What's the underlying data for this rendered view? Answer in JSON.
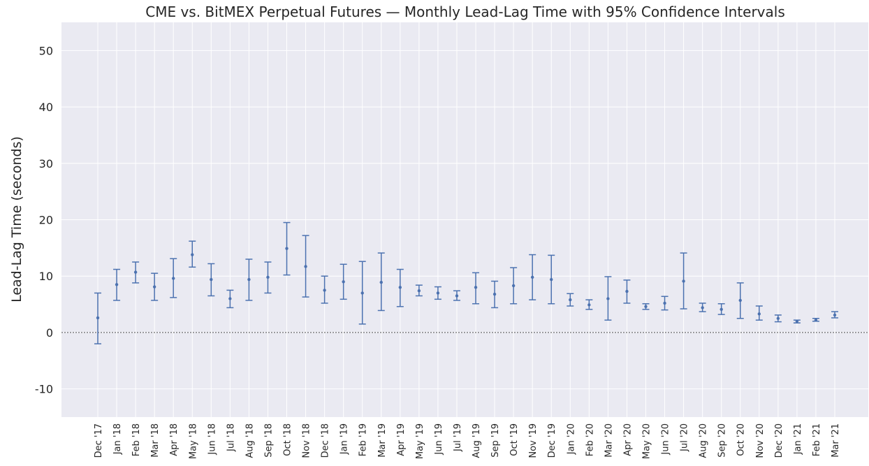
{
  "chart_data": {
    "type": "errorbar",
    "title": "CME vs. BitMEX Perpetual Futures — Monthly Lead-Lag Time with 95% Confidence Intervals",
    "y_label": "Lead-Lag Time (seconds)",
    "categories": [
      "Dec '17",
      "Jan '18",
      "Feb '18",
      "Mar '18",
      "Apr '18",
      "May '18",
      "Jun '18",
      "Jul '18",
      "Aug '18",
      "Sep '18",
      "Oct '18",
      "Nov '18",
      "Dec '18",
      "Jan '19",
      "Feb '19",
      "Mar '19",
      "Apr '19",
      "May '19",
      "Jun '19",
      "Jul '19",
      "Aug '19",
      "Sep '19",
      "Oct '19",
      "Nov '19",
      "Dec '19",
      "Jan '20",
      "Feb '20",
      "Mar '20",
      "Apr '20",
      "May '20",
      "Jun '20",
      "Jul '20",
      "Aug '20",
      "Sep '20",
      "Oct '20",
      "Nov '20",
      "Dec '20",
      "Jan '21",
      "Feb '21",
      "Mar '21"
    ],
    "color": "#4c72b0",
    "values": [
      2.6,
      8.5,
      10.7,
      8.1,
      9.6,
      13.8,
      9.4,
      6.0,
      9.4,
      9.8,
      14.9,
      11.7,
      7.5,
      9.0,
      7.0,
      8.9,
      8.0,
      7.4,
      7.0,
      6.5,
      8.0,
      6.8,
      8.3,
      9.8,
      9.4,
      5.8,
      4.9,
      6.0,
      7.3,
      4.6,
      5.2,
      9.1,
      4.4,
      4.1,
      5.7,
      3.3,
      2.5,
      2.0,
      2.2,
      3.1
    ],
    "ci_low": [
      -2.0,
      5.7,
      8.8,
      5.7,
      6.2,
      11.6,
      6.5,
      4.4,
      5.7,
      7.0,
      10.2,
      6.3,
      5.2,
      5.9,
      1.5,
      3.9,
      4.6,
      6.5,
      5.9,
      5.7,
      5.1,
      4.4,
      5.1,
      5.8,
      5.1,
      4.7,
      4.1,
      2.2,
      5.2,
      4.1,
      4.0,
      4.2,
      3.7,
      3.2,
      2.5,
      2.2,
      1.9,
      1.7,
      2.0,
      2.6
    ],
    "ci_high": [
      7.0,
      11.2,
      12.5,
      10.5,
      13.1,
      16.2,
      12.2,
      7.5,
      13.0,
      12.5,
      19.5,
      17.2,
      10.0,
      12.1,
      12.6,
      14.1,
      11.2,
      8.4,
      8.1,
      7.4,
      10.6,
      9.1,
      11.5,
      13.8,
      13.7,
      6.9,
      5.8,
      9.9,
      9.3,
      5.1,
      6.4,
      14.1,
      5.2,
      5.1,
      8.8,
      4.7,
      3.1,
      2.2,
      2.5,
      3.7
    ],
    "ylim": [
      -15,
      55
    ],
    "yticks": [
      -10,
      0,
      10,
      20,
      30,
      40,
      50
    ],
    "hline": 0,
    "grid": true
  }
}
